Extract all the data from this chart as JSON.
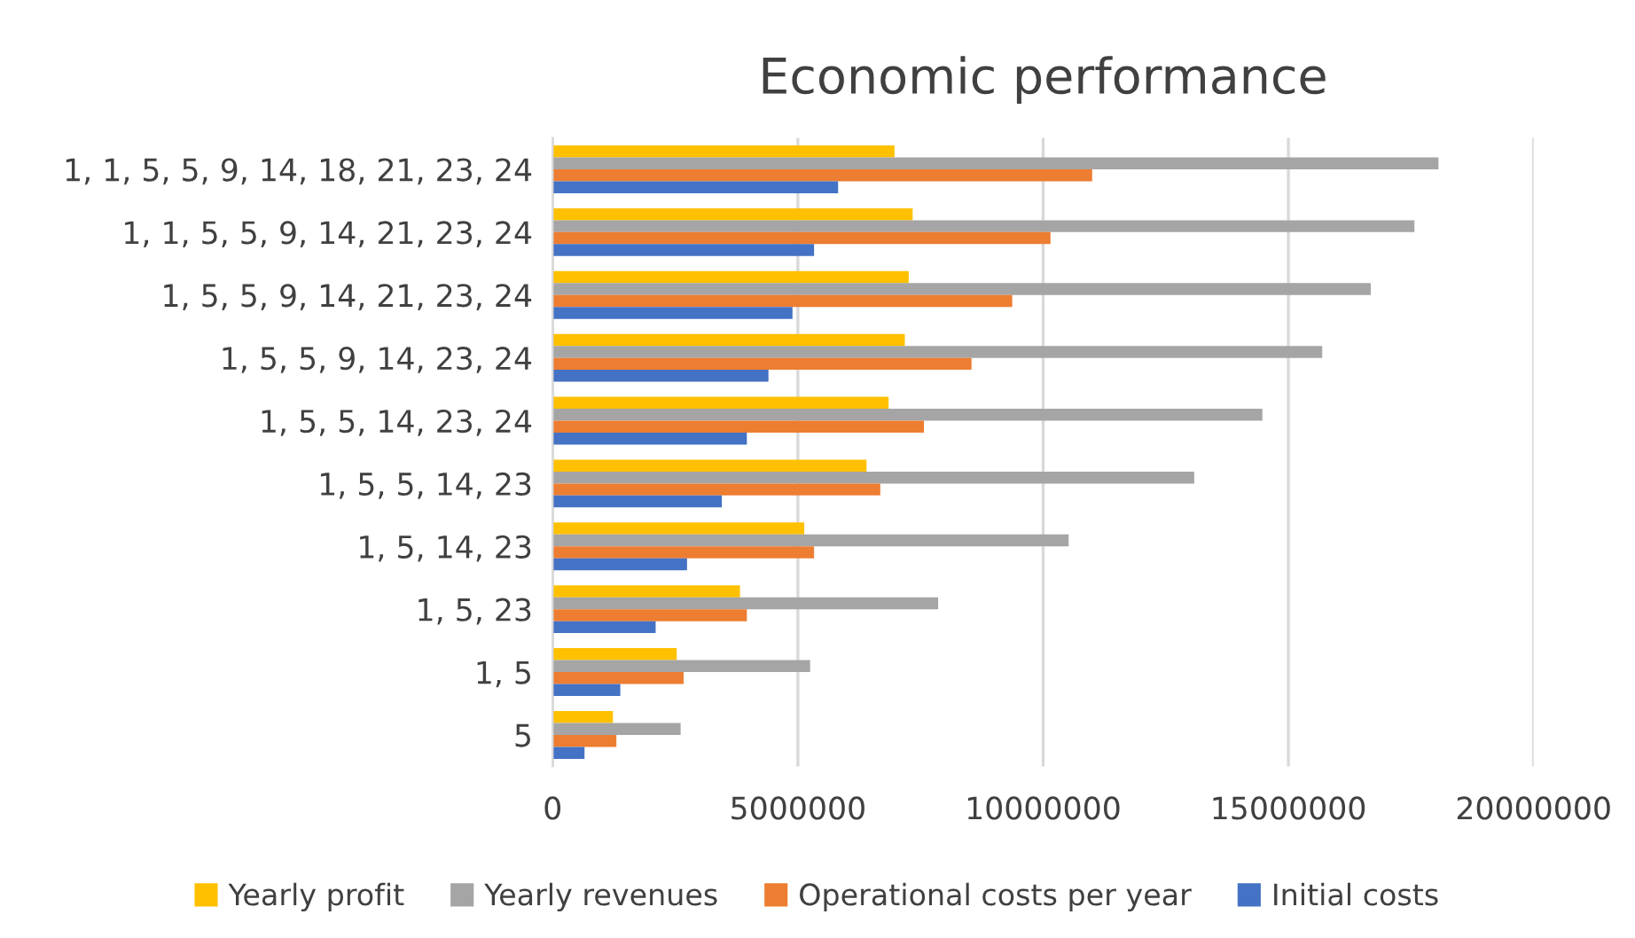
{
  "chart_data": {
    "type": "bar",
    "orientation": "horizontal",
    "title": "Economic performance",
    "categories": [
      "1, 1, 5, 5, 9, 14, 18, 21, 23, 24",
      "1, 1, 5, 5, 9, 14, 21, 23, 24",
      "1, 5, 5, 9, 14, 21, 23, 24",
      "1, 5, 5, 9, 14, 23, 24",
      "1, 5, 5, 14, 23, 24",
      "1, 5, 5, 14, 23",
      "1, 5, 14, 23",
      "1, 5, 23",
      "1, 5",
      "5"
    ],
    "series": [
      {
        "name": "Yearly profit",
        "color": "#ffc000",
        "values": [
          6970000,
          7340000,
          7260000,
          7180000,
          6850000,
          6400000,
          5130000,
          3820000,
          2530000,
          1230000
        ]
      },
      {
        "name": "Yearly revenues",
        "color": "#a5a5a5",
        "values": [
          18060000,
          17570000,
          16680000,
          15690000,
          14470000,
          13080000,
          10520000,
          7860000,
          5250000,
          2610000
        ]
      },
      {
        "name": "Operational costs per year",
        "color": "#ed7d31",
        "values": [
          11000000,
          10150000,
          9370000,
          8540000,
          7570000,
          6680000,
          5330000,
          3960000,
          2670000,
          1300000
        ]
      },
      {
        "name": "Initial costs",
        "color": "#4472c4",
        "values": [
          5820000,
          5330000,
          4890000,
          4400000,
          3960000,
          3450000,
          2740000,
          2100000,
          1380000,
          650000
        ]
      }
    ],
    "xlim": [
      0,
      20000000
    ],
    "xticks": [
      0,
      5000000,
      10000000,
      15000000,
      20000000
    ],
    "grid": "x",
    "legend": "bottom"
  }
}
